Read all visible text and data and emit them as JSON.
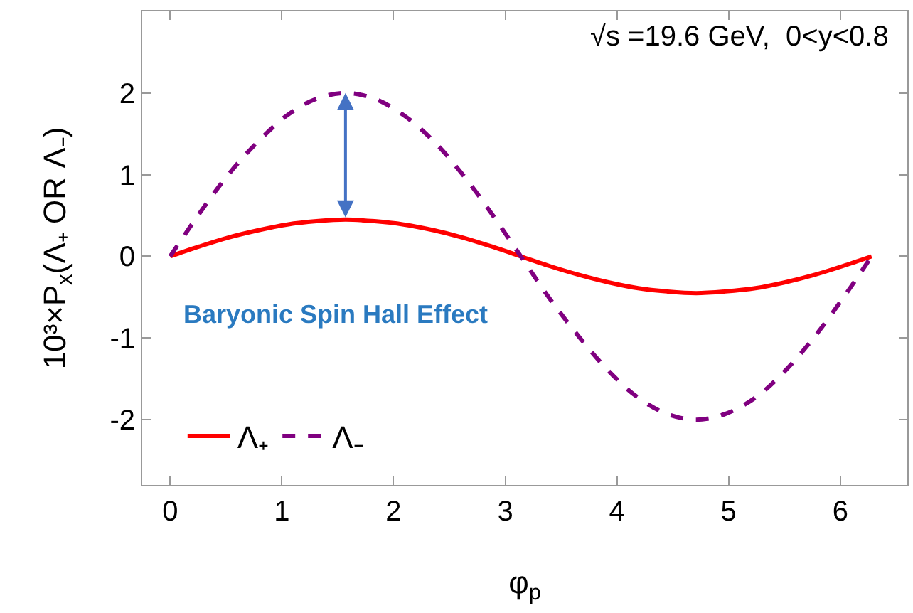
{
  "chart_data": {
    "type": "line",
    "xlabel": "φ$_{p}$",
    "ylabel": "10³×P$_{x}$(Λ₊ OR Λ₋)",
    "x": [
      0,
      0.26,
      0.52,
      0.79,
      1.05,
      1.31,
      1.57,
      1.83,
      2.09,
      2.36,
      2.62,
      2.88,
      3.14,
      3.4,
      3.67,
      3.93,
      4.19,
      4.45,
      4.71,
      4.97,
      5.24,
      5.5,
      5.76,
      6.02,
      6.28
    ],
    "series": [
      {
        "name": "Λ₊",
        "color": "#ff0000",
        "line_style": "solid",
        "values": [
          0,
          0.12,
          0.23,
          0.32,
          0.39,
          0.43,
          0.45,
          0.43,
          0.39,
          0.32,
          0.23,
          0.12,
          0,
          -0.12,
          -0.23,
          -0.32,
          -0.39,
          -0.43,
          -0.45,
          -0.43,
          -0.39,
          -0.32,
          -0.23,
          -0.12,
          0
        ]
      },
      {
        "name": "Λ₋",
        "color": "#800080",
        "line_style": "dashed",
        "values": [
          0,
          0.52,
          1.0,
          1.41,
          1.73,
          1.93,
          2.0,
          1.93,
          1.73,
          1.41,
          1.0,
          0.52,
          0,
          -0.52,
          -1.0,
          -1.41,
          -1.73,
          -1.93,
          -2.0,
          -1.93,
          -1.73,
          -1.41,
          -1.0,
          -0.52,
          0
        ]
      }
    ],
    "annotations": [
      "√s =19.6 GeV,  0<y<0.8",
      "Baryonic Spin Hall Effect"
    ],
    "xlim": [
      -0.25,
      6.6
    ],
    "xticks": [
      0,
      1,
      2,
      3,
      4,
      5,
      6
    ],
    "ylim": [
      -2.8,
      3.0
    ],
    "yticks": [
      -2,
      -1,
      0,
      1,
      2
    ],
    "grid": false,
    "legend": "bottom left",
    "marker": "none"
  }
}
